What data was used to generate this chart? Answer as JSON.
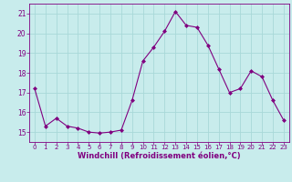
{
  "x": [
    0,
    1,
    2,
    3,
    4,
    5,
    6,
    7,
    8,
    9,
    10,
    11,
    12,
    13,
    14,
    15,
    16,
    17,
    18,
    19,
    20,
    21,
    22,
    23
  ],
  "y": [
    17.2,
    15.3,
    15.7,
    15.3,
    15.2,
    15.0,
    14.95,
    15.0,
    15.1,
    16.6,
    18.6,
    19.3,
    20.1,
    21.1,
    20.4,
    20.3,
    19.4,
    18.2,
    17.0,
    17.2,
    18.1,
    17.8,
    16.6,
    15.6
  ],
  "line_color": "#800080",
  "marker": "D",
  "marker_size": 2.0,
  "bg_color": "#c8ecec",
  "grid_color": "#a8d8d8",
  "xlabel": "Windchill (Refroidissement éolien,°C)",
  "ylabel": "",
  "ylim": [
    14.5,
    21.5
  ],
  "xlim": [
    -0.5,
    23.5
  ],
  "yticks": [
    15,
    16,
    17,
    18,
    19,
    20,
    21
  ],
  "xticks": [
    0,
    1,
    2,
    3,
    4,
    5,
    6,
    7,
    8,
    9,
    10,
    11,
    12,
    13,
    14,
    15,
    16,
    17,
    18,
    19,
    20,
    21,
    22,
    23
  ],
  "tick_color": "#800080",
  "axis_color": "#800080",
  "xlabel_fontsize": 6.0,
  "xtick_fontsize": 5.0,
  "ytick_fontsize": 5.5
}
